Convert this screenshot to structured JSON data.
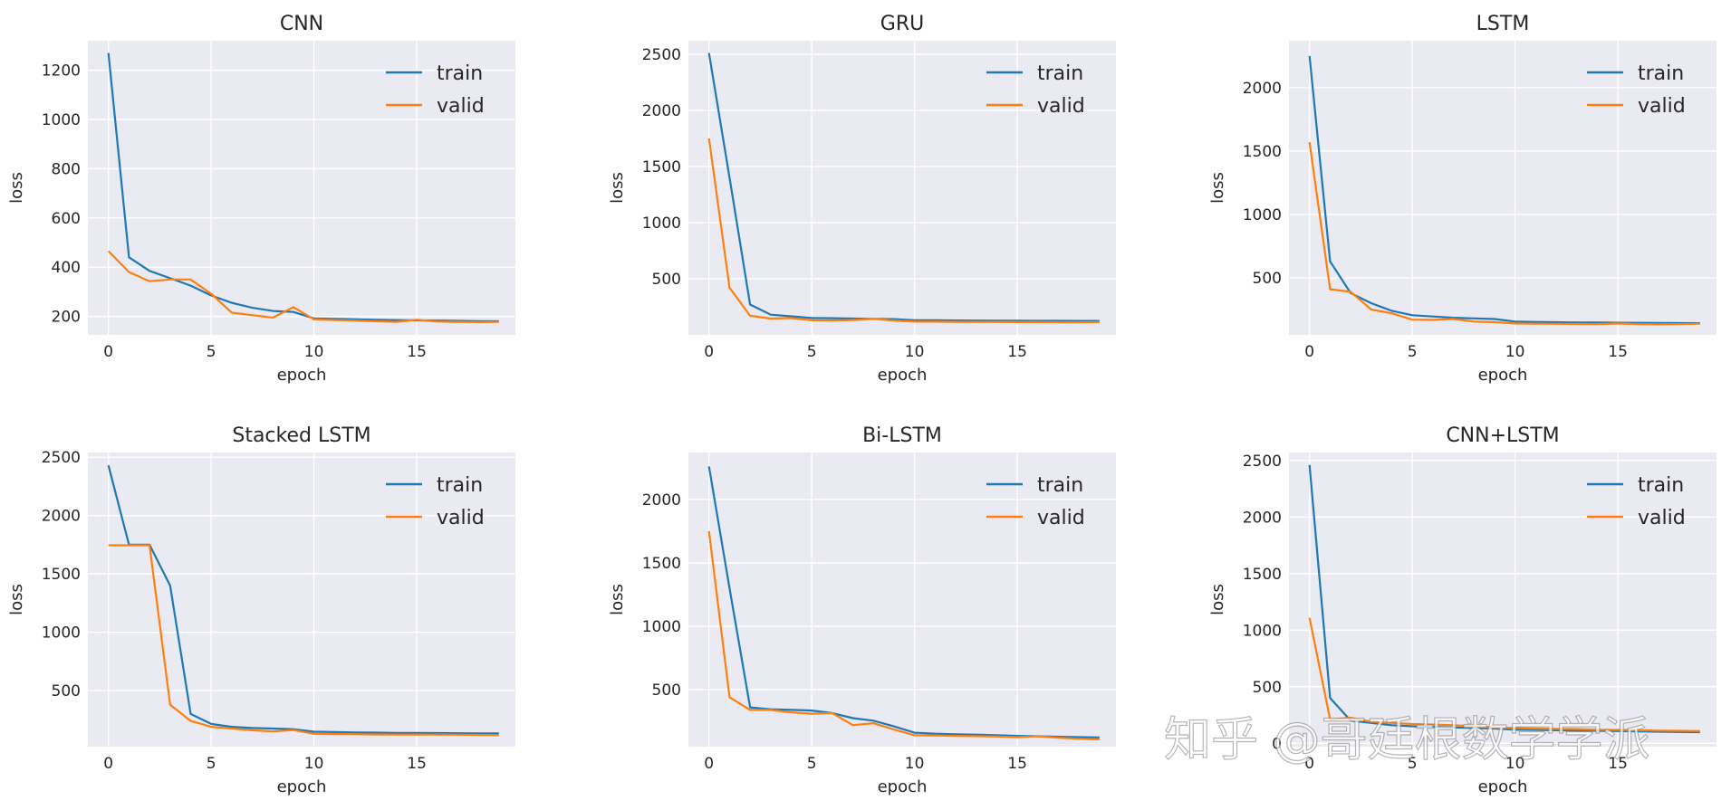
{
  "colors": {
    "train": "#1f77b4",
    "valid": "#ff7f0e"
  },
  "watermark": "知乎 @哥廷根数学学派",
  "chart_data": [
    {
      "type": "line",
      "title": "CNN",
      "xlabel": "epoch",
      "ylabel": "loss",
      "xlim": [
        -1,
        19.8
      ],
      "ylim": [
        125,
        1320
      ],
      "xticks": [
        0,
        5,
        10,
        15
      ],
      "yticks": [
        200,
        400,
        600,
        800,
        1000,
        1200
      ],
      "legend": "top-right",
      "x": [
        0,
        1,
        2,
        3,
        4,
        5,
        6,
        7,
        8,
        9,
        10,
        11,
        12,
        13,
        14,
        15,
        16,
        17,
        18,
        19
      ],
      "series": [
        {
          "name": "train",
          "values": [
            1270,
            440,
            385,
            355,
            325,
            285,
            255,
            235,
            222,
            218,
            192,
            190,
            188,
            186,
            185,
            184,
            183,
            182,
            181,
            180
          ]
        },
        {
          "name": "valid",
          "values": [
            465,
            380,
            343,
            350,
            350,
            292,
            215,
            205,
            195,
            238,
            188,
            185,
            183,
            180,
            178,
            186,
            179,
            178,
            177,
            178
          ]
        }
      ]
    },
    {
      "type": "line",
      "title": "GRU",
      "xlabel": "epoch",
      "ylabel": "loss",
      "xlim": [
        -1,
        19.8
      ],
      "ylim": [
        0,
        2620
      ],
      "xticks": [
        0,
        5,
        10,
        15
      ],
      "yticks": [
        500,
        1000,
        1500,
        2000,
        2500
      ],
      "legend": "top-right",
      "x": [
        0,
        1,
        2,
        3,
        4,
        5,
        6,
        7,
        8,
        9,
        10,
        11,
        12,
        13,
        14,
        15,
        16,
        17,
        18,
        19
      ],
      "series": [
        {
          "name": "train",
          "values": [
            2510,
            1400,
            270,
            180,
            165,
            150,
            148,
            145,
            143,
            140,
            130,
            130,
            128,
            127,
            126,
            126,
            125,
            125,
            124,
            124
          ]
        },
        {
          "name": "valid",
          "values": [
            1750,
            420,
            170,
            145,
            150,
            130,
            128,
            132,
            142,
            128,
            118,
            118,
            116,
            115,
            115,
            114,
            114,
            113,
            113,
            113
          ]
        }
      ]
    },
    {
      "type": "line",
      "title": "LSTM",
      "xlabel": "epoch",
      "ylabel": "loss",
      "xlim": [
        -1,
        19.8
      ],
      "ylim": [
        50,
        2370
      ],
      "xticks": [
        0,
        5,
        10,
        15
      ],
      "yticks": [
        500,
        1000,
        1500,
        2000
      ],
      "legend": "top-right",
      "x": [
        0,
        1,
        2,
        3,
        4,
        5,
        6,
        7,
        8,
        9,
        10,
        11,
        12,
        13,
        14,
        15,
        16,
        17,
        18,
        19
      ],
      "series": [
        {
          "name": "train",
          "values": [
            2250,
            630,
            380,
            300,
            240,
            205,
            195,
            185,
            180,
            175,
            155,
            152,
            150,
            148,
            147,
            146,
            145,
            144,
            143,
            142
          ]
        },
        {
          "name": "valid",
          "values": [
            1570,
            410,
            390,
            250,
            220,
            170,
            168,
            175,
            155,
            150,
            140,
            138,
            137,
            136,
            135,
            140,
            135,
            133,
            135,
            138
          ]
        }
      ]
    },
    {
      "type": "line",
      "title": "Stacked LSTM",
      "xlabel": "epoch",
      "ylabel": "loss",
      "xlim": [
        -1,
        19.8
      ],
      "ylim": [
        20,
        2540
      ],
      "xticks": [
        0,
        5,
        10,
        15
      ],
      "yticks": [
        500,
        1000,
        1500,
        2000,
        2500
      ],
      "legend": "top-right",
      "x": [
        0,
        1,
        2,
        3,
        4,
        5,
        6,
        7,
        8,
        9,
        10,
        11,
        12,
        13,
        14,
        15,
        16,
        17,
        18,
        19
      ],
      "series": [
        {
          "name": "train",
          "values": [
            2430,
            1750,
            1750,
            1400,
            300,
            215,
            190,
            180,
            175,
            170,
            148,
            145,
            142,
            140,
            138,
            137,
            136,
            135,
            134,
            133
          ]
        },
        {
          "name": "valid",
          "values": [
            1745,
            1745,
            1745,
            380,
            240,
            190,
            175,
            160,
            150,
            162,
            130,
            128,
            126,
            125,
            124,
            124,
            123,
            122,
            121,
            120
          ]
        }
      ]
    },
    {
      "type": "line",
      "title": "Bi-LSTM",
      "xlabel": "epoch",
      "ylabel": "loss",
      "xlim": [
        -1,
        19.8
      ],
      "ylim": [
        50,
        2370
      ],
      "xticks": [
        0,
        5,
        10,
        15
      ],
      "yticks": [
        500,
        1000,
        1500,
        2000
      ],
      "legend": "top-right",
      "x": [
        0,
        1,
        2,
        3,
        4,
        5,
        6,
        7,
        8,
        9,
        10,
        11,
        12,
        13,
        14,
        15,
        16,
        17,
        18,
        19
      ],
      "series": [
        {
          "name": "train",
          "values": [
            2260,
            1300,
            360,
            345,
            340,
            335,
            315,
            275,
            255,
            210,
            160,
            152,
            148,
            145,
            140,
            135,
            132,
            128,
            125,
            122
          ]
        },
        {
          "name": "valid",
          "values": [
            1750,
            440,
            340,
            340,
            320,
            310,
            315,
            220,
            235,
            185,
            140,
            138,
            135,
            133,
            130,
            125,
            132,
            120,
            112,
            108
          ]
        }
      ]
    },
    {
      "type": "line",
      "title": "CNN+LSTM",
      "xlabel": "epoch",
      "ylabel": "loss",
      "xlim": [
        -1,
        19.8
      ],
      "ylim": [
        -30,
        2570
      ],
      "xticks": [
        0,
        5,
        10,
        15
      ],
      "yticks": [
        0,
        500,
        1000,
        1500,
        2000,
        2500
      ],
      "legend": "top-right",
      "x": [
        0,
        1,
        2,
        3,
        4,
        5,
        6,
        7,
        8,
        9,
        10,
        11,
        12,
        13,
        14,
        15,
        16,
        17,
        18,
        19
      ],
      "series": [
        {
          "name": "train",
          "values": [
            2460,
            400,
            200,
            180,
            160,
            150,
            145,
            140,
            135,
            130,
            120,
            118,
            115,
            112,
            110,
            108,
            105,
            102,
            100,
            98
          ]
        },
        {
          "name": "valid",
          "values": [
            1110,
            210,
            225,
            190,
            180,
            170,
            165,
            160,
            150,
            140,
            135,
            130,
            128,
            125,
            120,
            118,
            115,
            112,
            110,
            108
          ]
        }
      ]
    }
  ]
}
